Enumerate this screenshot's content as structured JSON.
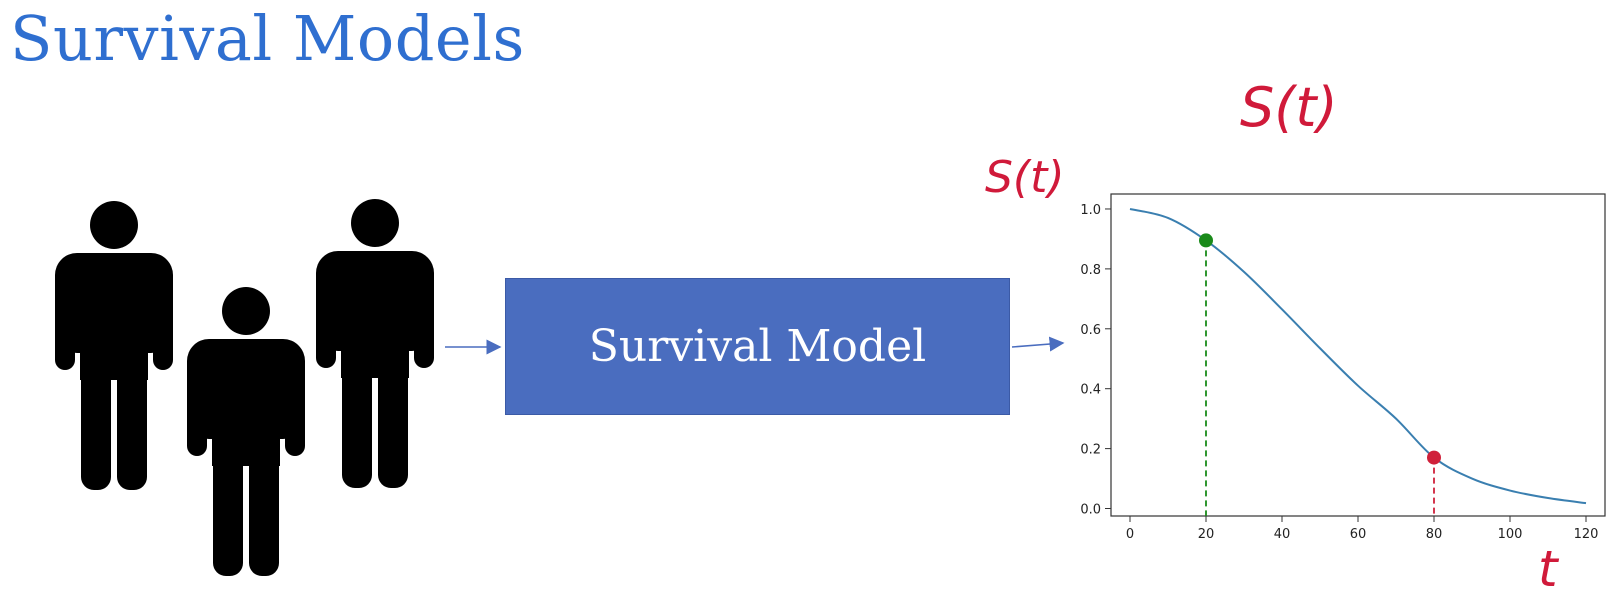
{
  "slide": {
    "title": "Survival Models",
    "model_box_label": "Survival Model",
    "annotations": {
      "top": "S(t)",
      "y_axis": "S(t)",
      "x_axis": "t"
    }
  },
  "colors": {
    "title": "#2f6fd0",
    "box": "#4a6dbf",
    "curve": "#3a7fb0",
    "green_point": "#1a8a1a",
    "red_point": "#d0203a",
    "annotation": "#d01a3a"
  },
  "icons": [
    "person-icon",
    "arrow-right-icon"
  ],
  "chart_data": {
    "type": "line",
    "x_ticks": [
      0,
      20,
      40,
      60,
      80,
      100,
      120
    ],
    "y_ticks": [
      "0.0",
      "0.2",
      "0.4",
      "0.6",
      "0.8",
      "1.0"
    ],
    "xlim": [
      -5,
      125
    ],
    "ylim": [
      -0.025,
      1.05
    ],
    "series": [
      {
        "x": [
          0,
          10,
          20,
          30,
          40,
          50,
          60,
          70,
          80,
          90,
          100,
          110,
          120
        ],
        "y": [
          1.0,
          0.97,
          0.895,
          0.79,
          0.665,
          0.535,
          0.41,
          0.3,
          0.17,
          0.1,
          0.06,
          0.035,
          0.018
        ]
      }
    ],
    "highlight_points": [
      {
        "x": 20,
        "y": 0.895,
        "color": "green"
      },
      {
        "x": 80,
        "y": 0.17,
        "color": "red"
      }
    ],
    "grid": false
  }
}
